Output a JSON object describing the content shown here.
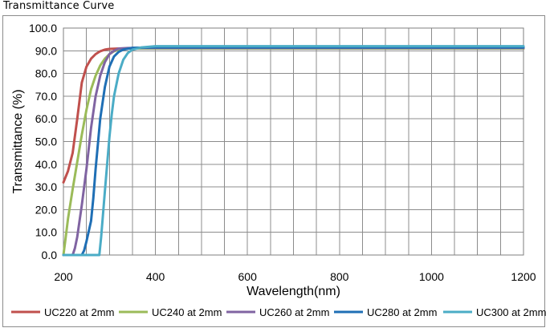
{
  "page_title": "Transmittance Curve",
  "chart_data": {
    "type": "line",
    "title": "",
    "xlabel": "Wavelength(nm)",
    "ylabel": "Transmittance (%)",
    "xlim": [
      200,
      1200
    ],
    "ylim": [
      0,
      100
    ],
    "x_ticks": [
      200,
      400,
      600,
      800,
      1000,
      1200
    ],
    "y_ticks": [
      "0.0",
      "10.0",
      "20.0",
      "30.0",
      "40.0",
      "50.0",
      "60.0",
      "70.0",
      "80.0",
      "90.0",
      "100.0"
    ],
    "grid": true,
    "legend_position": "bottom",
    "series": [
      {
        "name": "UC220 at 2mm",
        "color": "#c0504d",
        "points": [
          [
            200,
            32
          ],
          [
            210,
            37
          ],
          [
            220,
            45
          ],
          [
            230,
            60
          ],
          [
            240,
            76
          ],
          [
            250,
            83
          ],
          [
            260,
            86.5
          ],
          [
            270,
            88.5
          ],
          [
            280,
            89.8
          ],
          [
            290,
            90.5
          ],
          [
            300,
            90.8
          ],
          [
            320,
            91
          ],
          [
            350,
            91
          ],
          [
            400,
            91
          ],
          [
            600,
            91
          ],
          [
            800,
            91
          ],
          [
            1000,
            91
          ],
          [
            1200,
            91
          ]
        ]
      },
      {
        "name": "UC240 at 2mm",
        "color": "#9bbb59",
        "points": [
          [
            200,
            0
          ],
          [
            205,
            8
          ],
          [
            210,
            16
          ],
          [
            220,
            29
          ],
          [
            230,
            41
          ],
          [
            240,
            53
          ],
          [
            250,
            64
          ],
          [
            260,
            73
          ],
          [
            270,
            79
          ],
          [
            280,
            83.5
          ],
          [
            290,
            86.5
          ],
          [
            300,
            88.5
          ],
          [
            310,
            89.8
          ],
          [
            320,
            90.5
          ],
          [
            340,
            91
          ],
          [
            400,
            91
          ],
          [
            600,
            91
          ],
          [
            800,
            91
          ],
          [
            1000,
            91
          ],
          [
            1200,
            91
          ]
        ]
      },
      {
        "name": "UC260 at 2mm",
        "color": "#8064a2",
        "points": [
          [
            200,
            0
          ],
          [
            220,
            0
          ],
          [
            225,
            3
          ],
          [
            230,
            8
          ],
          [
            240,
            22
          ],
          [
            250,
            38
          ],
          [
            260,
            56
          ],
          [
            270,
            70
          ],
          [
            280,
            79
          ],
          [
            290,
            85
          ],
          [
            300,
            88.5
          ],
          [
            310,
            90
          ],
          [
            320,
            91
          ],
          [
            340,
            91.2
          ],
          [
            400,
            91.2
          ],
          [
            600,
            91.2
          ],
          [
            800,
            91.2
          ],
          [
            1000,
            91.2
          ],
          [
            1200,
            91.2
          ]
        ]
      },
      {
        "name": "UC280 at 2mm",
        "color": "#1f6fb5",
        "points": [
          [
            200,
            0
          ],
          [
            240,
            0
          ],
          [
            245,
            2
          ],
          [
            250,
            6
          ],
          [
            260,
            15
          ],
          [
            265,
            25
          ],
          [
            270,
            38
          ],
          [
            280,
            60
          ],
          [
            290,
            74
          ],
          [
            300,
            83
          ],
          [
            310,
            87.5
          ],
          [
            320,
            89.5
          ],
          [
            330,
            90.5
          ],
          [
            350,
            91.3
          ],
          [
            400,
            91.5
          ],
          [
            600,
            91.5
          ],
          [
            800,
            91.5
          ],
          [
            1000,
            91.5
          ],
          [
            1200,
            91.5
          ]
        ]
      },
      {
        "name": "UC300 at 2mm",
        "color": "#4bacc6",
        "points": [
          [
            200,
            0
          ],
          [
            270,
            0
          ],
          [
            278,
            0
          ],
          [
            282,
            8
          ],
          [
            290,
            28
          ],
          [
            300,
            52
          ],
          [
            305,
            62
          ],
          [
            310,
            70
          ],
          [
            320,
            80
          ],
          [
            330,
            86
          ],
          [
            340,
            89
          ],
          [
            350,
            90.5
          ],
          [
            370,
            91.5
          ],
          [
            400,
            92
          ],
          [
            600,
            92
          ],
          [
            800,
            92
          ],
          [
            1000,
            92
          ],
          [
            1200,
            92
          ]
        ]
      }
    ]
  }
}
